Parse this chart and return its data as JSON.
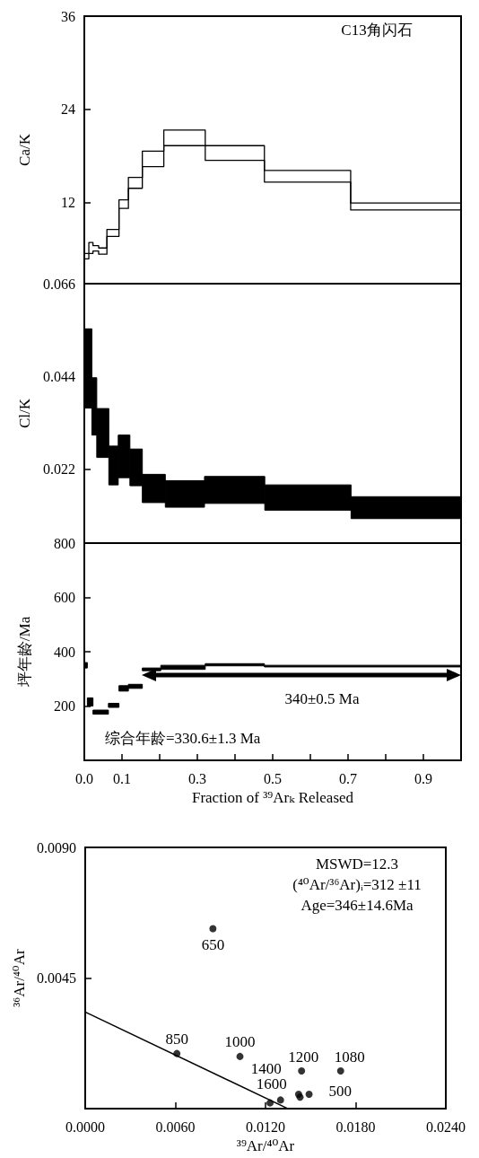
{
  "chart_data": [
    {
      "type": "step",
      "ylabel": "Ca/K",
      "annotations": [
        "C13角闪石"
      ],
      "xlim": [
        0,
        1
      ],
      "ylim": [
        1.5,
        36
      ],
      "yticks": [
        12,
        24,
        36
      ],
      "tick_labels": "y",
      "x": [
        0,
        0.012,
        0.023,
        0.038,
        0.06,
        0.092,
        0.117,
        0.154,
        0.211,
        0.321,
        0.478,
        0.707,
        1
      ],
      "series": [
        {
          "color": "#000000",
          "values": [
            5.4,
            6.8,
            6.4,
            6.1,
            8.5,
            12.3,
            15.2,
            18.6,
            21.3,
            19.3,
            16.1,
            11.9,
            11.9
          ]
        },
        {
          "color": "#000000",
          "values": [
            4.7,
            5.4,
            5.7,
            5.3,
            7.6,
            11.2,
            13.8,
            16.6,
            19.3,
            17.4,
            14.6,
            11.0,
            11.0
          ]
        }
      ]
    },
    {
      "type": "bar",
      "ylabel": "Cl/K",
      "xlim": [
        0,
        1
      ],
      "ylim": [
        0.0045,
        0.066
      ],
      "yticks": [
        0.022,
        0.044,
        0.066
      ],
      "tick_labels": "y",
      "x": [
        0.01,
        0.0265,
        0.049,
        0.0775,
        0.1055,
        0.1375,
        0.1845,
        0.267,
        0.399,
        0.5935,
        0.854
      ],
      "series": [
        {
          "color": "#000000",
          "base": [
            0.0365,
            0.0301,
            0.0248,
            0.0183,
            0.02,
            0.0181,
            0.0141,
            0.013,
            0.0139,
            0.0123,
            0.0103
          ],
          "values": [
            0.0188,
            0.0136,
            0.0116,
            0.0092,
            0.0101,
            0.0087,
            0.0067,
            0.0063,
            0.0064,
            0.006,
            0.0052
          ]
        }
      ]
    },
    {
      "type": "bar",
      "ylabel": "坪年龄/Ma",
      "xlabel": "Fraction of ³⁹Arₖ Released",
      "xlim": [
        0,
        1
      ],
      "ylim": [
        0,
        800
      ],
      "yticks": [
        200,
        400,
        600,
        800
      ],
      "annotations": [
        "综合年龄=330.6±1.3 Ma",
        "340±0.5 Ma"
      ],
      "xticks": [
        {
          "value": 0,
          "label": "0.0"
        },
        0.1,
        {
          "value": 0.2,
          "label": null
        },
        0.3,
        {
          "value": 0.4,
          "label": null
        },
        0.5,
        {
          "value": 0.6,
          "label": null
        },
        0.7,
        {
          "value": 0.8,
          "label": null
        },
        0.9
      ],
      "x": [
        0.004,
        0.0155,
        0.0435,
        0.078,
        0.1045,
        0.1355,
        0.1785,
        0.262,
        0.3995,
        0.739
      ],
      "series": [
        {
          "color": "#000000",
          "base": [
            340,
            200,
            170,
            195,
            255,
            265,
            330,
            335,
            348,
            344
          ],
          "values": [
            20,
            30,
            15,
            15,
            20,
            15,
            10,
            15,
            8,
            6
          ]
        }
      ]
    },
    {
      "type": "scatter",
      "xlabel": "³⁹Ar/⁴⁰Ar",
      "ylabel": "³⁶Ar/⁴⁰Ar",
      "marker": "circle",
      "annotations": [
        "MSWD=12.3",
        "(⁴⁰Ar/³⁶Ar)ᵢ=312 ±11",
        "Age=346±14.6Ma",
        {
          "text": "650",
          "x": 0.0085,
          "y": 0.0062
        },
        {
          "text": "850",
          "x": 0.0061,
          "y": 0.0019
        },
        {
          "text": "1000",
          "x": 0.0103,
          "y": 0.0018
        },
        {
          "text": "1200",
          "x": 0.0144,
          "y": 0.0013
        },
        {
          "text": "1080",
          "x": 0.017,
          "y": 0.0013
        },
        {
          "text": "1400",
          "x": 0.0142,
          "y": 0.0005
        },
        {
          "text": "1600",
          "x": 0.013,
          "y": 0.0003
        },
        {
          "text": "500",
          "x": 0.0149,
          "y": 0.0005
        }
      ],
      "xlim": [
        0,
        0.024
      ],
      "xticks": [
        {
          "value": 0,
          "label": "0.0000"
        },
        {
          "value": 0.006,
          "label": "0.0060"
        },
        {
          "value": 0.012,
          "label": "0.0120"
        },
        {
          "value": 0.018,
          "label": "0.0180"
        },
        {
          "value": 0.024,
          "label": "0.0240"
        }
      ],
      "ylim": [
        0,
        0.009
      ],
      "yticks": [
        0.0045,
        {
          "value": 0.009,
          "label": "0.0090"
        }
      ],
      "series": [
        {
          "color": "#000000",
          "x": [
            0.0085,
            0.0061,
            0.0103,
            0.0144,
            0.017,
            0.0142,
            0.013,
            0.0149,
            0.0123,
            0.0143
          ],
          "values": [
            0.0062,
            0.0019,
            0.0018,
            0.0013,
            0.0013,
            0.0005,
            0.0003,
            0.0005,
            0.0002,
            0.0004
          ]
        },
        {
          "type": "line",
          "marker": "none",
          "color": "#000000",
          "x": [
            0,
            0.0135
          ],
          "values": [
            0.00333,
            0
          ]
        }
      ]
    }
  ]
}
